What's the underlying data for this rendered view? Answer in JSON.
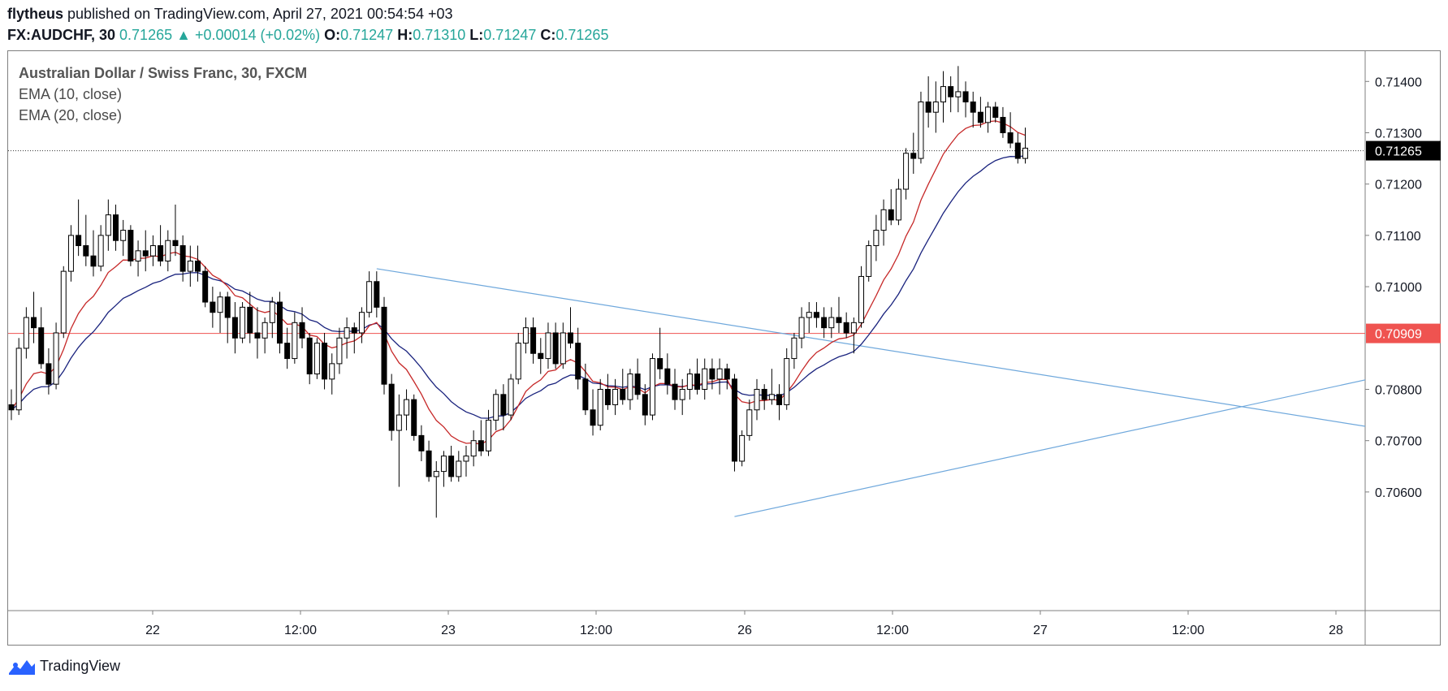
{
  "header": {
    "author": "flytheus",
    "published_text": "published on TradingView.com, April 27, 2021 00:54:54 +03",
    "symbol": "FX:AUDCHF, 30",
    "last": "0.71265",
    "change": "+0.00014 (+0.02%)",
    "o_label": "O:",
    "o": "0.71247",
    "h_label": "H:",
    "h": "0.71310",
    "l_label": "L:",
    "l": "0.71247",
    "c_label": "C:",
    "c": "0.71265",
    "up_arrow": "▲"
  },
  "legend": {
    "title": "Australian Dollar / Swiss Franc, 30, FXCM",
    "ema10": "EMA (10, close)",
    "ema20": "EMA (20, close)"
  },
  "brand": {
    "name": "TradingView",
    "icon": "tradingview-logo-icon"
  },
  "colors": {
    "up_body": "#ffffff",
    "down_body": "#000000",
    "wick": "#000000",
    "ema10": "#c62828",
    "ema20": "#1a237e",
    "trendline": "#6fa8dc",
    "hline": "#ef5350",
    "last_price_tag": "#000000",
    "hline_tag": "#ef5350",
    "change_up": "#26a69a"
  },
  "chart_data": {
    "type": "candlestick",
    "symbol": "AUDCHF",
    "interval_minutes": 30,
    "ylim": [
      0.7054,
      0.7146
    ],
    "y_ticks": [
      "0.71400",
      "0.71300",
      "0.71200",
      "0.71100",
      "0.71000",
      "0.70800",
      "0.70700",
      "0.70600"
    ],
    "x_ticks": [
      "22",
      "12:00",
      "23",
      "12:00",
      "26",
      "12:00",
      "27",
      "12:00",
      "28"
    ],
    "last_price": "0.71265",
    "horizontal_line": "0.70909",
    "trendlines": [
      {
        "name": "descending",
        "from": [
          49,
          0.71035
        ],
        "to": [
          198,
          0.7069
        ]
      },
      {
        "name": "ascending",
        "from": [
          97,
          0.70552
        ],
        "to": [
          198,
          0.7087
        ]
      }
    ],
    "ohlc": [
      [
        0.7077,
        0.708,
        0.7074,
        0.7076
      ],
      [
        0.7076,
        0.709,
        0.7075,
        0.7088
      ],
      [
        0.7088,
        0.7096,
        0.7086,
        0.7094
      ],
      [
        0.7094,
        0.7099,
        0.7089,
        0.7092
      ],
      [
        0.7092,
        0.7096,
        0.7084,
        0.7085
      ],
      [
        0.7085,
        0.7088,
        0.7079,
        0.7081
      ],
      [
        0.7081,
        0.7093,
        0.708,
        0.7091
      ],
      [
        0.7091,
        0.7104,
        0.709,
        0.7103
      ],
      [
        0.7103,
        0.7112,
        0.7101,
        0.711
      ],
      [
        0.711,
        0.7117,
        0.7106,
        0.7108
      ],
      [
        0.7108,
        0.7114,
        0.7104,
        0.7106
      ],
      [
        0.7106,
        0.7111,
        0.7102,
        0.7104
      ],
      [
        0.7104,
        0.7112,
        0.7103,
        0.711
      ],
      [
        0.711,
        0.7117,
        0.7107,
        0.7114
      ],
      [
        0.7114,
        0.7116,
        0.7107,
        0.7109
      ],
      [
        0.7109,
        0.7113,
        0.7106,
        0.7111
      ],
      [
        0.7111,
        0.7112,
        0.7104,
        0.7105
      ],
      [
        0.7105,
        0.7109,
        0.7102,
        0.7107
      ],
      [
        0.7107,
        0.7111,
        0.7103,
        0.7106
      ],
      [
        0.7106,
        0.711,
        0.7104,
        0.7108
      ],
      [
        0.7108,
        0.7112,
        0.7104,
        0.7105
      ],
      [
        0.7105,
        0.7111,
        0.7103,
        0.7109
      ],
      [
        0.7109,
        0.7116,
        0.7106,
        0.7108
      ],
      [
        0.7108,
        0.711,
        0.7101,
        0.7103
      ],
      [
        0.7103,
        0.7108,
        0.71,
        0.7105
      ],
      [
        0.7105,
        0.7108,
        0.7101,
        0.7103
      ],
      [
        0.7103,
        0.7104,
        0.7096,
        0.7097
      ],
      [
        0.7097,
        0.71,
        0.7092,
        0.7095
      ],
      [
        0.7095,
        0.7099,
        0.7091,
        0.7098
      ],
      [
        0.7098,
        0.7099,
        0.7089,
        0.7094
      ],
      [
        0.7094,
        0.7097,
        0.7087,
        0.709
      ],
      [
        0.709,
        0.7097,
        0.7089,
        0.7096
      ],
      [
        0.7096,
        0.7099,
        0.7089,
        0.7091
      ],
      [
        0.7091,
        0.7096,
        0.7086,
        0.709
      ],
      [
        0.709,
        0.7094,
        0.7087,
        0.7093
      ],
      [
        0.7093,
        0.7098,
        0.709,
        0.7097
      ],
      [
        0.7097,
        0.7099,
        0.7087,
        0.7089
      ],
      [
        0.7089,
        0.7092,
        0.7084,
        0.7086
      ],
      [
        0.7086,
        0.7095,
        0.7085,
        0.7093
      ],
      [
        0.7093,
        0.7096,
        0.7088,
        0.709
      ],
      [
        0.709,
        0.7091,
        0.7081,
        0.7083
      ],
      [
        0.7083,
        0.709,
        0.7082,
        0.7089
      ],
      [
        0.7089,
        0.7091,
        0.708,
        0.7082
      ],
      [
        0.7082,
        0.7087,
        0.7079,
        0.7085
      ],
      [
        0.7085,
        0.7092,
        0.7083,
        0.709
      ],
      [
        0.709,
        0.7094,
        0.7086,
        0.7092
      ],
      [
        0.7092,
        0.7093,
        0.7087,
        0.7091
      ],
      [
        0.7091,
        0.7096,
        0.7089,
        0.7095
      ],
      [
        0.7095,
        0.7103,
        0.7094,
        0.7101
      ],
      [
        0.7101,
        0.7103,
        0.7094,
        0.7096
      ],
      [
        0.7096,
        0.7098,
        0.7079,
        0.7081
      ],
      [
        0.7081,
        0.7083,
        0.707,
        0.7072
      ],
      [
        0.7072,
        0.7079,
        0.7061,
        0.7075
      ],
      [
        0.7075,
        0.708,
        0.7072,
        0.7078
      ],
      [
        0.7078,
        0.7079,
        0.707,
        0.7071
      ],
      [
        0.7071,
        0.7073,
        0.7066,
        0.7068
      ],
      [
        0.7068,
        0.707,
        0.7062,
        0.7063
      ],
      [
        0.7063,
        0.7066,
        0.7055,
        0.7064
      ],
      [
        0.7064,
        0.7068,
        0.7061,
        0.7067
      ],
      [
        0.7067,
        0.7069,
        0.7062,
        0.7063
      ],
      [
        0.7063,
        0.7068,
        0.7062,
        0.7066
      ],
      [
        0.7066,
        0.7069,
        0.7063,
        0.7067
      ],
      [
        0.7067,
        0.7072,
        0.7065,
        0.707
      ],
      [
        0.707,
        0.7074,
        0.7067,
        0.7068
      ],
      [
        0.7068,
        0.7076,
        0.7067,
        0.7074
      ],
      [
        0.7074,
        0.708,
        0.7072,
        0.7079
      ],
      [
        0.7079,
        0.7081,
        0.7072,
        0.7075
      ],
      [
        0.7075,
        0.7083,
        0.7074,
        0.7082
      ],
      [
        0.7082,
        0.7091,
        0.7081,
        0.7089
      ],
      [
        0.7089,
        0.7094,
        0.7087,
        0.7092
      ],
      [
        0.7092,
        0.7094,
        0.7085,
        0.7087
      ],
      [
        0.7087,
        0.709,
        0.7083,
        0.7086
      ],
      [
        0.7086,
        0.7093,
        0.7084,
        0.7091
      ],
      [
        0.7091,
        0.7093,
        0.7084,
        0.7085
      ],
      [
        0.7085,
        0.7093,
        0.7084,
        0.7091
      ],
      [
        0.7091,
        0.7096,
        0.7088,
        0.7089
      ],
      [
        0.7089,
        0.7092,
        0.708,
        0.7082
      ],
      [
        0.7082,
        0.7085,
        0.7075,
        0.7076
      ],
      [
        0.7076,
        0.708,
        0.7071,
        0.7073
      ],
      [
        0.7073,
        0.7082,
        0.7072,
        0.708
      ],
      [
        0.708,
        0.7083,
        0.7076,
        0.7077
      ],
      [
        0.7077,
        0.7082,
        0.7075,
        0.708
      ],
      [
        0.708,
        0.7084,
        0.7077,
        0.7078
      ],
      [
        0.7078,
        0.7084,
        0.7076,
        0.7083
      ],
      [
        0.7083,
        0.7086,
        0.7078,
        0.7079
      ],
      [
        0.7079,
        0.7081,
        0.7073,
        0.7075
      ],
      [
        0.7075,
        0.7087,
        0.7074,
        0.7086
      ],
      [
        0.7086,
        0.7092,
        0.7082,
        0.7084
      ],
      [
        0.7084,
        0.7087,
        0.7079,
        0.7081
      ],
      [
        0.7081,
        0.7084,
        0.7076,
        0.7078
      ],
      [
        0.7078,
        0.7082,
        0.7075,
        0.708
      ],
      [
        0.708,
        0.7084,
        0.7078,
        0.7083
      ],
      [
        0.7083,
        0.7086,
        0.7079,
        0.708
      ],
      [
        0.708,
        0.7086,
        0.7078,
        0.7084
      ],
      [
        0.7084,
        0.7086,
        0.708,
        0.7082
      ],
      [
        0.7082,
        0.7086,
        0.7079,
        0.7084
      ],
      [
        0.7084,
        0.7085,
        0.708,
        0.7082
      ],
      [
        0.7082,
        0.7083,
        0.7064,
        0.7066
      ],
      [
        0.7066,
        0.7072,
        0.7065,
        0.7071
      ],
      [
        0.7071,
        0.7078,
        0.707,
        0.7076
      ],
      [
        0.7076,
        0.7082,
        0.7074,
        0.708
      ],
      [
        0.708,
        0.7081,
        0.7076,
        0.7078
      ],
      [
        0.7078,
        0.7084,
        0.7077,
        0.7079
      ],
      [
        0.7079,
        0.7081,
        0.7074,
        0.7077
      ],
      [
        0.7077,
        0.7088,
        0.7076,
        0.7086
      ],
      [
        0.7086,
        0.7091,
        0.7084,
        0.709
      ],
      [
        0.709,
        0.7096,
        0.7088,
        0.7094
      ],
      [
        0.7094,
        0.7097,
        0.7091,
        0.7095
      ],
      [
        0.7095,
        0.7097,
        0.7092,
        0.7094
      ],
      [
        0.7094,
        0.7096,
        0.709,
        0.7092
      ],
      [
        0.7092,
        0.7096,
        0.709,
        0.7094
      ],
      [
        0.7094,
        0.7098,
        0.7091,
        0.7093
      ],
      [
        0.7093,
        0.7095,
        0.709,
        0.7091
      ],
      [
        0.7091,
        0.7094,
        0.7087,
        0.7093
      ],
      [
        0.7093,
        0.7104,
        0.7092,
        0.7102
      ],
      [
        0.7102,
        0.7109,
        0.7101,
        0.7108
      ],
      [
        0.7108,
        0.7114,
        0.7105,
        0.7111
      ],
      [
        0.7111,
        0.7117,
        0.7108,
        0.7115
      ],
      [
        0.7115,
        0.7119,
        0.7112,
        0.7113
      ],
      [
        0.7113,
        0.7121,
        0.7112,
        0.7119
      ],
      [
        0.7119,
        0.7127,
        0.7117,
        0.7126
      ],
      [
        0.7126,
        0.713,
        0.7122,
        0.7125
      ],
      [
        0.7125,
        0.7138,
        0.7124,
        0.7136
      ],
      [
        0.7136,
        0.7141,
        0.7131,
        0.7134
      ],
      [
        0.7134,
        0.714,
        0.713,
        0.7136
      ],
      [
        0.7136,
        0.7142,
        0.7132,
        0.7139
      ],
      [
        0.7139,
        0.7141,
        0.7134,
        0.7137
      ],
      [
        0.7137,
        0.7143,
        0.7134,
        0.7138
      ],
      [
        0.7138,
        0.714,
        0.7133,
        0.7136
      ],
      [
        0.7136,
        0.7138,
        0.7131,
        0.7134
      ],
      [
        0.7134,
        0.7137,
        0.7131,
        0.7132
      ],
      [
        0.7132,
        0.7136,
        0.713,
        0.7135
      ],
      [
        0.7135,
        0.7136,
        0.7132,
        0.7133
      ],
      [
        0.7133,
        0.7135,
        0.7129,
        0.713
      ],
      [
        0.713,
        0.7134,
        0.7127,
        0.7128
      ],
      [
        0.7128,
        0.713,
        0.7124,
        0.7125
      ],
      [
        0.7125,
        0.7131,
        0.7124,
        0.7127
      ]
    ]
  }
}
